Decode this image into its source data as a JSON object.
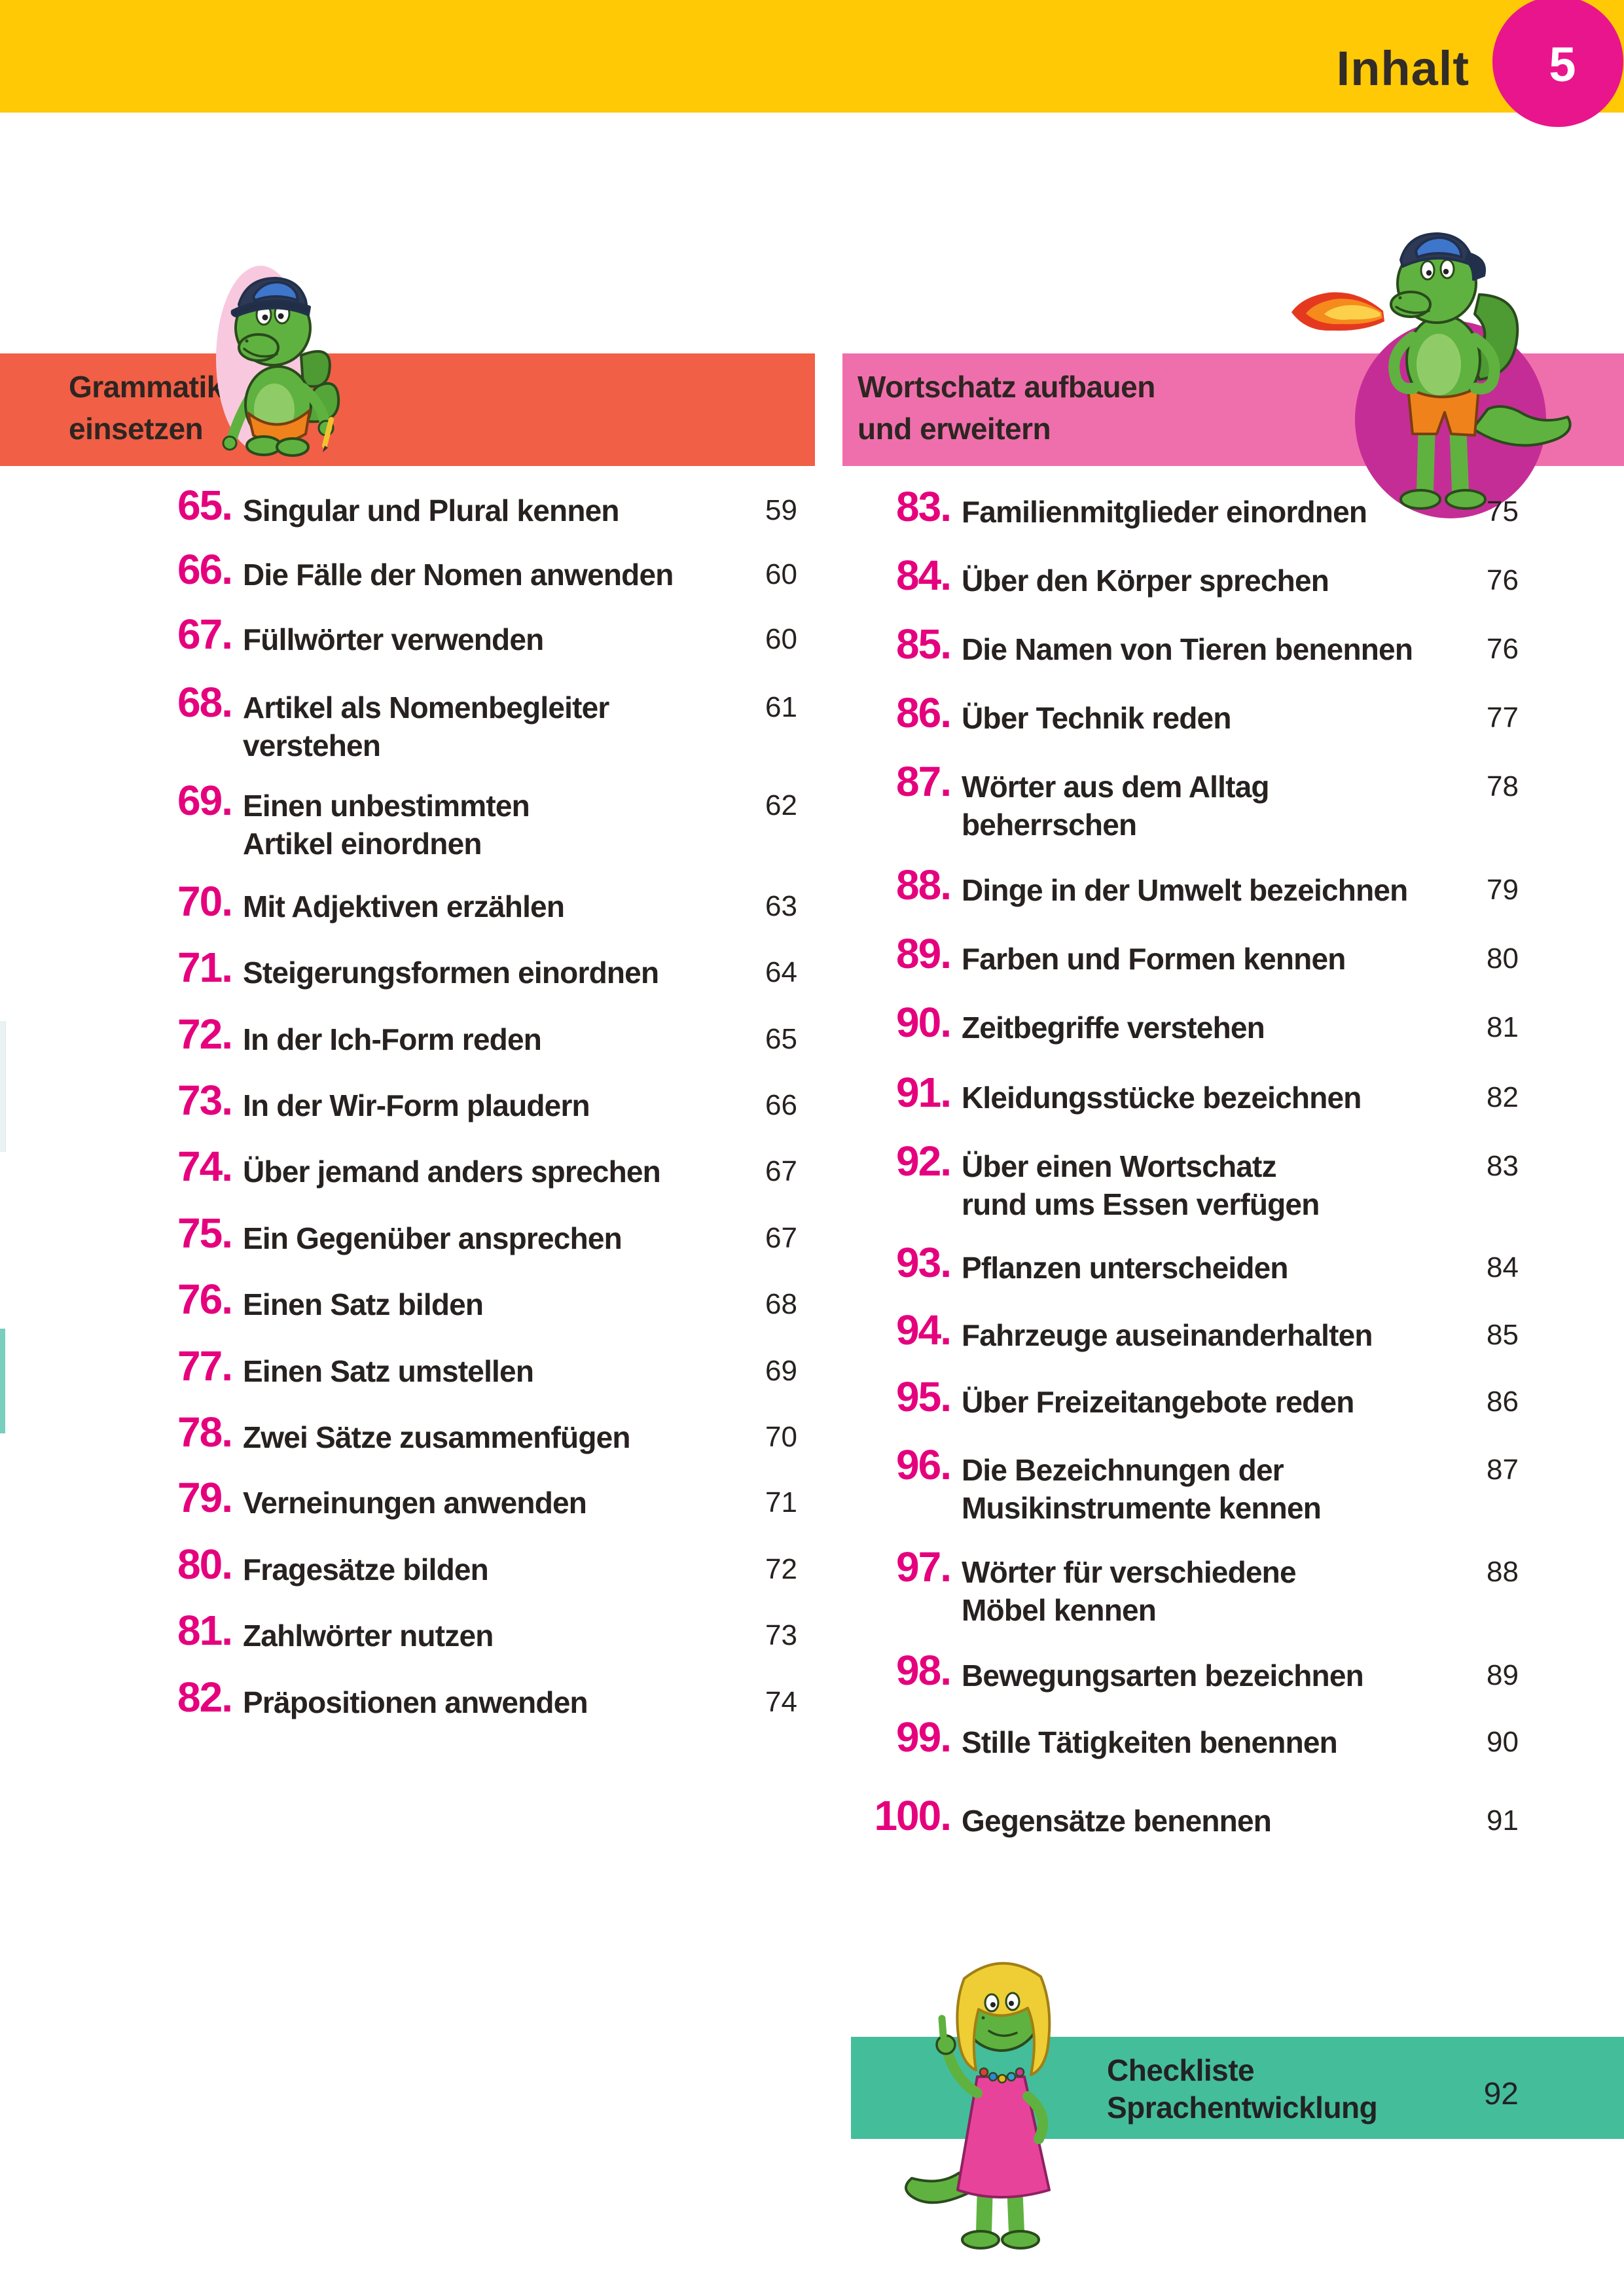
{
  "header": {
    "title": "Inhalt",
    "page_badge": "5"
  },
  "sections": [
    {
      "title": "Grammatik richtig\neinsetzen",
      "accent_color": "#F15F46",
      "entries": [
        {
          "num": "65.",
          "title": "Singular und Plural kennen",
          "page": "59"
        },
        {
          "num": "66.",
          "title": "Die Fälle der Nomen anwenden",
          "page": "60"
        },
        {
          "num": "67.",
          "title": "Füllwörter verwenden",
          "page": "60"
        },
        {
          "num": "68.",
          "title": "Artikel als Nomenbegleiter\nverstehen",
          "page": "61"
        },
        {
          "num": "69.",
          "title": "Einen unbestimmten\nArtikel einordnen",
          "page": "62"
        },
        {
          "num": "70.",
          "title": "Mit Adjektiven erzählen",
          "page": "63"
        },
        {
          "num": "71.",
          "title": "Steigerungsformen einordnen",
          "page": "64"
        },
        {
          "num": "72.",
          "title": "In der Ich-Form reden",
          "page": "65"
        },
        {
          "num": "73.",
          "title": "In der Wir-Form plaudern",
          "page": "66"
        },
        {
          "num": "74.",
          "title": "Über jemand anders sprechen",
          "page": "67"
        },
        {
          "num": "75.",
          "title": "Ein Gegenüber ansprechen",
          "page": "67"
        },
        {
          "num": "76.",
          "title": "Einen Satz bilden",
          "page": "68"
        },
        {
          "num": "77.",
          "title": "Einen Satz umstellen",
          "page": "69"
        },
        {
          "num": "78.",
          "title": "Zwei Sätze zusammenfügen",
          "page": "70"
        },
        {
          "num": "79.",
          "title": "Verneinungen anwenden",
          "page": "71"
        },
        {
          "num": "80.",
          "title": "Fragesätze bilden",
          "page": "72"
        },
        {
          "num": "81.",
          "title": "Zahlwörter nutzen",
          "page": "73"
        },
        {
          "num": "82.",
          "title": "Präpositionen anwenden",
          "page": "74"
        }
      ]
    },
    {
      "title": "Wortschatz aufbauen\nund erweitern",
      "accent_color": "#EF6FAD",
      "entries": [
        {
          "num": "83.",
          "title": "Familienmitglieder einordnen",
          "page": "75"
        },
        {
          "num": "84.",
          "title": "Über den Körper sprechen",
          "page": "76"
        },
        {
          "num": "85.",
          "title": "Die Namen von Tieren benennen",
          "page": "76"
        },
        {
          "num": "86.",
          "title": "Über Technik reden",
          "page": "77"
        },
        {
          "num": "87.",
          "title": "Wörter aus dem Alltag\nbeherrschen",
          "page": "78"
        },
        {
          "num": "88.",
          "title": "Dinge in der Umwelt bezeichnen",
          "page": "79"
        },
        {
          "num": "89.",
          "title": "Farben und Formen kennen",
          "page": "80"
        },
        {
          "num": "90.",
          "title": "Zeitbegriffe verstehen",
          "page": "81"
        },
        {
          "num": "91.",
          "title": "Kleidungsstücke bezeichnen",
          "page": "82"
        },
        {
          "num": "92.",
          "title": "Über einen Wortschatz\nrund ums Essen verfügen",
          "page": "83"
        },
        {
          "num": "93.",
          "title": "Pflanzen unterscheiden",
          "page": "84"
        },
        {
          "num": "94.",
          "title": "Fahrzeuge auseinanderhalten",
          "page": "85"
        },
        {
          "num": "95.",
          "title": "Über Freizeitangebote reden",
          "page": "86"
        },
        {
          "num": "96.",
          "title": "Die Bezeichnungen der\nMusikinstrumente kennen",
          "page": "87"
        },
        {
          "num": "97.",
          "title": "Wörter für verschiedene\nMöbel kennen",
          "page": "88"
        },
        {
          "num": "98.",
          "title": "Bewegungsarten bezeichnen",
          "page": "89"
        },
        {
          "num": "99.",
          "title": "Stille Tätigkeiten benennen",
          "page": "90"
        },
        {
          "num": "100.",
          "title": "Gegensätze benennen",
          "page": "91"
        }
      ]
    }
  ],
  "footer": {
    "title": "Checkliste\nSprachentwicklung",
    "page": "92"
  },
  "colors": {
    "top_bar": "#FFC906",
    "badge": "#E9158C",
    "entry_number": "#E5007D",
    "section_left_bar": "#F15F46",
    "section_right_bar": "#EF6FAD",
    "footer_bar": "#44BD9B",
    "ellipse_light_pink": "#F8C9DE",
    "ellipse_deep_magenta": "#C52D96",
    "text": "#272120"
  },
  "illustrations": [
    "dragon-writing-illustration",
    "dragon-fire-breathing-illustration",
    "dragon-girl-thumbs-up-illustration"
  ]
}
